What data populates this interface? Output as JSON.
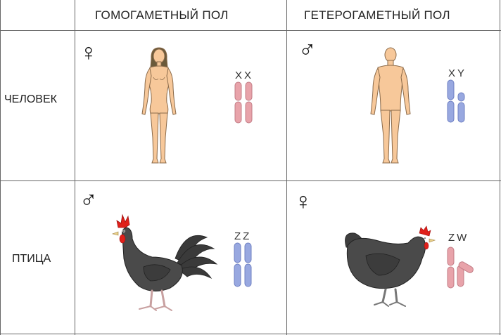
{
  "headers": {
    "homogametic": "ГОМОГАМЕТНЫЙ ПОЛ",
    "heterogametic": "ГЕТЕРОГАМЕТНЫЙ ПОЛ"
  },
  "rows": {
    "human": "ЧЕЛОВЕК",
    "bird": "ПТИЦА"
  },
  "cells": {
    "human_female": {
      "symbol": "♀",
      "chromosomes": "XX"
    },
    "human_male": {
      "symbol": "♂",
      "chromosomes": "XY"
    },
    "rooster": {
      "symbol": "♂",
      "chromosomes": "ZZ"
    },
    "hen": {
      "symbol": "♀",
      "chromosomes": "ZW"
    }
  },
  "colors": {
    "grid": "#666666",
    "x_chromosome": "#e8a3aa",
    "y_chromosome": "#98a8e0",
    "skin": "#f7c89a",
    "bird_body": "#4a4a4a",
    "comb": "#e0201a"
  }
}
